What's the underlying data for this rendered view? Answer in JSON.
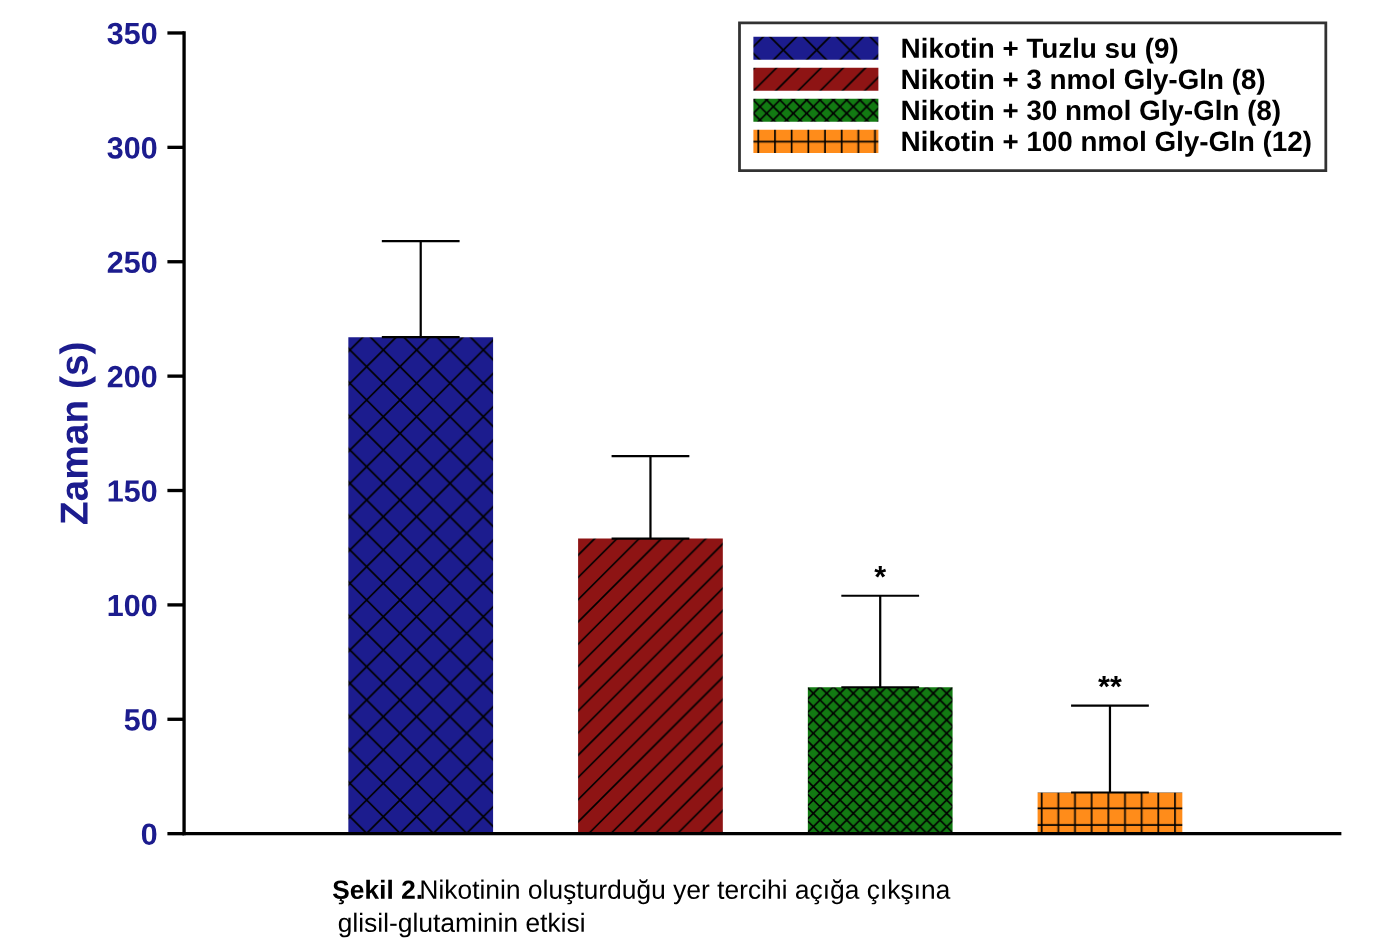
{
  "chart_data": {
    "type": "bar",
    "ylabel": "Zaman (s)",
    "categories": [
      null,
      null,
      null,
      null
    ],
    "series": [
      {
        "name": "Nikotin + Tuzlu su (9)",
        "color": "#1c1c8e",
        "values": [
          217,
          null,
          null,
          null
        ],
        "errors": [
          [
            217,
            259
          ],
          null,
          null,
          null
        ]
      },
      {
        "name": "Nikotin + 3 nmol Gly-Gln (8)",
        "color": "#8e1414",
        "values": [
          null,
          129,
          null,
          null
        ],
        "errors": [
          null,
          [
            129,
            165
          ],
          null,
          null
        ]
      },
      {
        "name": "Nikotin + 30 nmol Gly-Gln (8)",
        "color": "#127a12",
        "values": [
          null,
          null,
          64,
          null
        ],
        "errors": [
          null,
          null,
          [
            64,
            104
          ],
          null
        ]
      },
      {
        "name": "Nikotin + 100 nmol Gly-Gln (12)",
        "color": "#ff8c1a",
        "values": [
          null,
          null,
          null,
          18
        ],
        "errors": [
          null,
          null,
          null,
          [
            18,
            56
          ]
        ]
      }
    ],
    "ylim": [
      0,
      350
    ],
    "yticks": [
      0,
      50,
      100,
      150,
      200,
      250,
      300,
      350
    ],
    "legend": "top right",
    "annotations": [
      "*",
      "**",
      "Şekil 2.",
      "Nikotinin oluşturduğu yer tercihi açığa çıkşına\nglisil-glutaminin etkisi"
    ]
  }
}
